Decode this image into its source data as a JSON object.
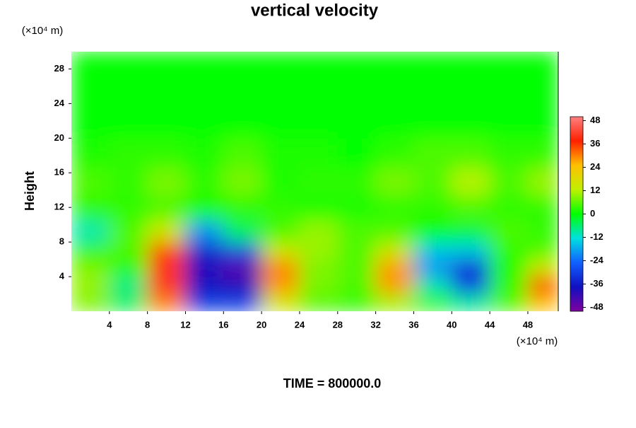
{
  "chart_data": {
    "type": "contour",
    "title": "vertical velocity",
    "y_label": "Height",
    "y_unit": "(×10⁴ m)",
    "x_unit": "(×10⁴ m)",
    "footer": "TIME = 800000.0",
    "xlim": [
      0,
      51.2
    ],
    "ylim": [
      0,
      30
    ],
    "xticks": [
      4,
      8,
      12,
      16,
      20,
      24,
      28,
      32,
      36,
      40,
      44,
      48
    ],
    "yticks": [
      4,
      8,
      12,
      16,
      20,
      24,
      28
    ],
    "clim": [
      -50,
      50
    ],
    "cticks": [
      -48,
      -36,
      -24,
      -12,
      0,
      12,
      24,
      36,
      48
    ],
    "colormap": [
      "#7f00a0",
      "#1010c0",
      "#1060ff",
      "#00e0e0",
      "#00ff00",
      "#c0f000",
      "#ffc000",
      "#ff2000",
      "#ff8080"
    ],
    "x": [
      2,
      6,
      10,
      14,
      18,
      22,
      26,
      30,
      34,
      38,
      42,
      46,
      50
    ],
    "y": [
      1,
      3,
      5,
      7,
      9,
      12,
      15,
      18,
      22,
      27
    ],
    "z": [
      [
        8,
        -5,
        30,
        -30,
        -30,
        15,
        5,
        3,
        10,
        3,
        -8,
        5,
        25
      ],
      [
        10,
        -8,
        40,
        -38,
        -40,
        28,
        8,
        5,
        28,
        -10,
        -30,
        3,
        38
      ],
      [
        8,
        2,
        40,
        -40,
        -46,
        30,
        8,
        5,
        28,
        -20,
        -34,
        2,
        15
      ],
      [
        3,
        5,
        35,
        -35,
        -30,
        15,
        10,
        5,
        15,
        -15,
        -15,
        3,
        5
      ],
      [
        -10,
        5,
        15,
        -20,
        -5,
        5,
        10,
        5,
        5,
        0,
        -3,
        5,
        3
      ],
      [
        3,
        3,
        5,
        2,
        3,
        3,
        2,
        2,
        3,
        3,
        5,
        3,
        3
      ],
      [
        5,
        3,
        8,
        3,
        8,
        2,
        3,
        3,
        8,
        5,
        12,
        5,
        10
      ],
      [
        2,
        3,
        3,
        2,
        5,
        2,
        2,
        0,
        3,
        5,
        5,
        3,
        3
      ],
      [
        0,
        0,
        0,
        0,
        0,
        0,
        0,
        0,
        0,
        0,
        0,
        0,
        0
      ],
      [
        0,
        0,
        0,
        0,
        0,
        0,
        0,
        0,
        0,
        0,
        0,
        0,
        0
      ]
    ]
  }
}
